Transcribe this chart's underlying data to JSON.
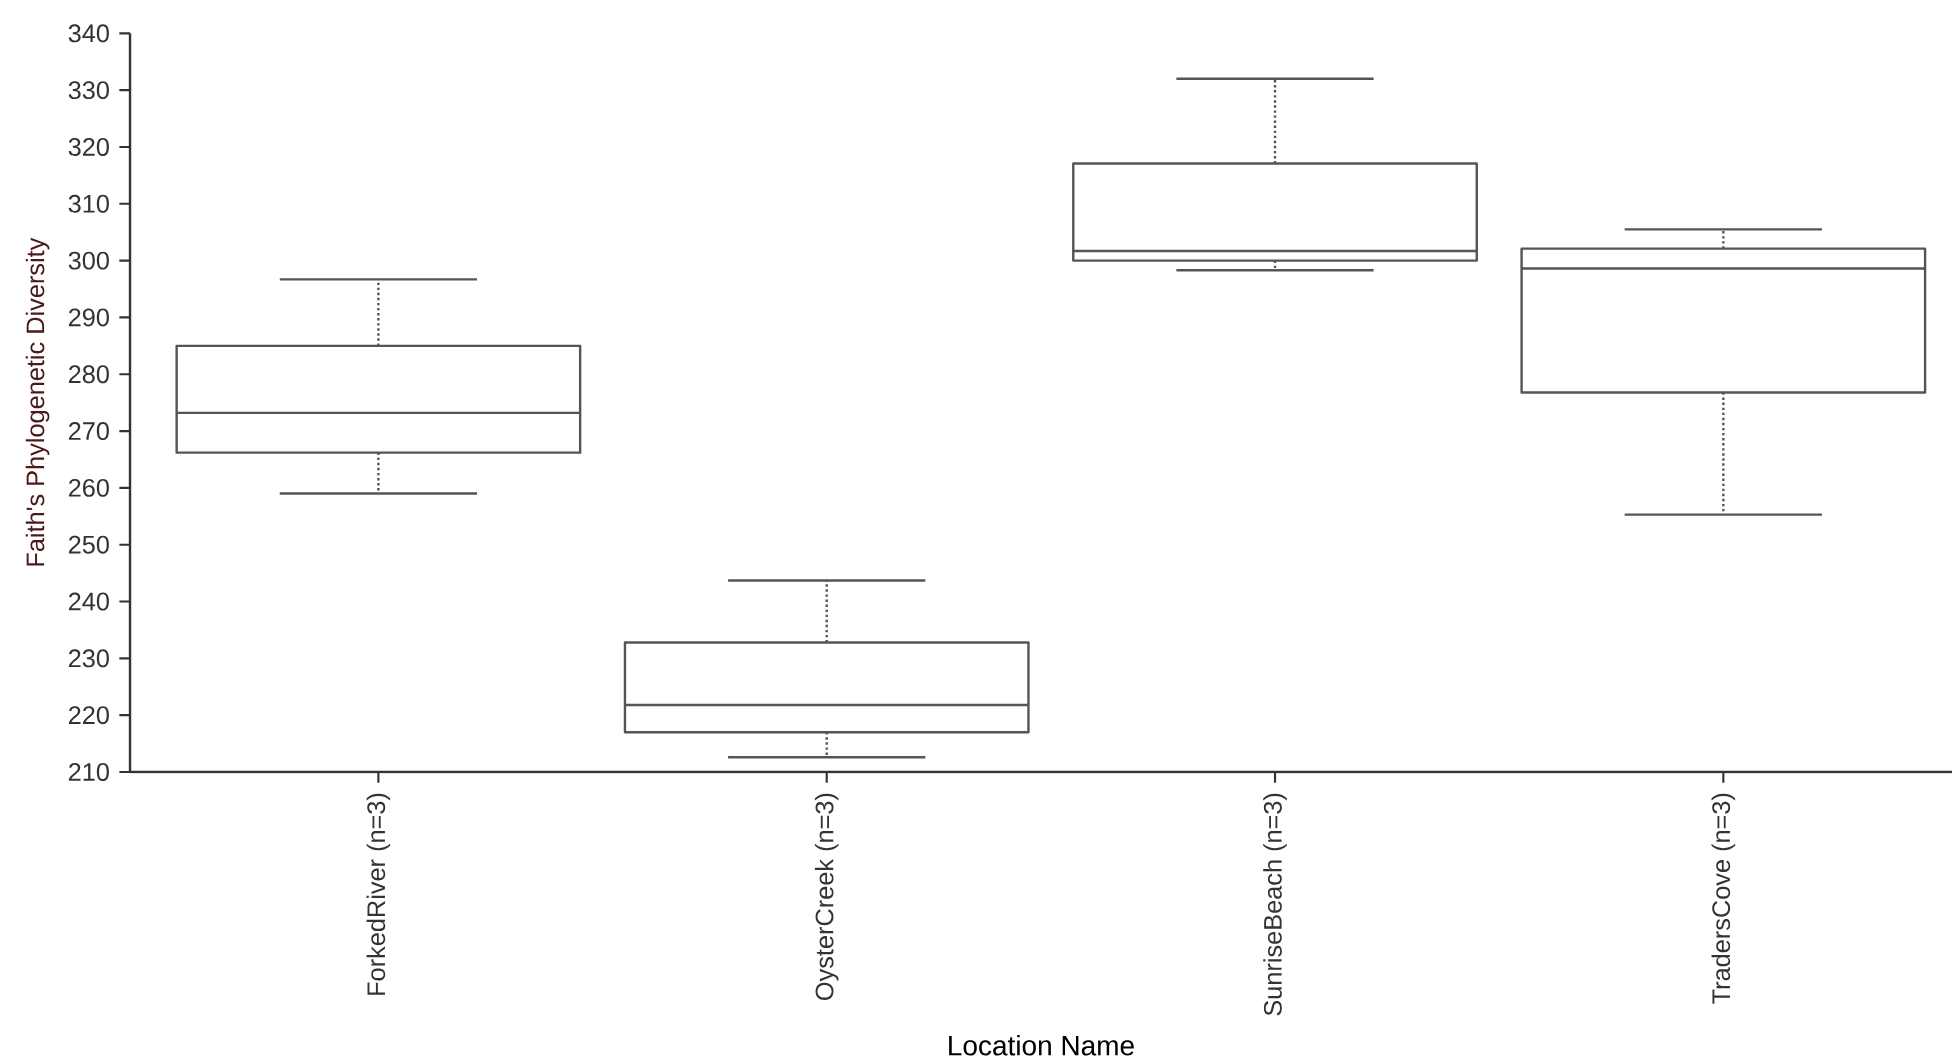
{
  "chart_data": {
    "type": "box",
    "xlabel": "Location Name",
    "ylabel": "Faith's Phylogenetic Diversity",
    "categories": [
      "ForkedRiver (n=3)",
      "OysterCreek (n=3)",
      "SunriseBeach (n=3)",
      "TradersCove (n=3)"
    ],
    "ylim": [
      210,
      340
    ],
    "yticks": [
      210,
      220,
      230,
      240,
      250,
      260,
      270,
      280,
      290,
      300,
      310,
      320,
      330,
      340
    ],
    "boxes": [
      {
        "low": 259,
        "q1": 266.2,
        "median": 273.2,
        "q3": 285,
        "high": 296.7
      },
      {
        "low": 212.6,
        "q1": 217,
        "median": 221.8,
        "q3": 232.8,
        "high": 243.7
      },
      {
        "low": 298.3,
        "q1": 300,
        "median": 301.7,
        "q3": 317.1,
        "high": 332
      },
      {
        "low": 255.3,
        "q1": 276.8,
        "median": 298.6,
        "q3": 302.1,
        "high": 305.5
      }
    ]
  }
}
